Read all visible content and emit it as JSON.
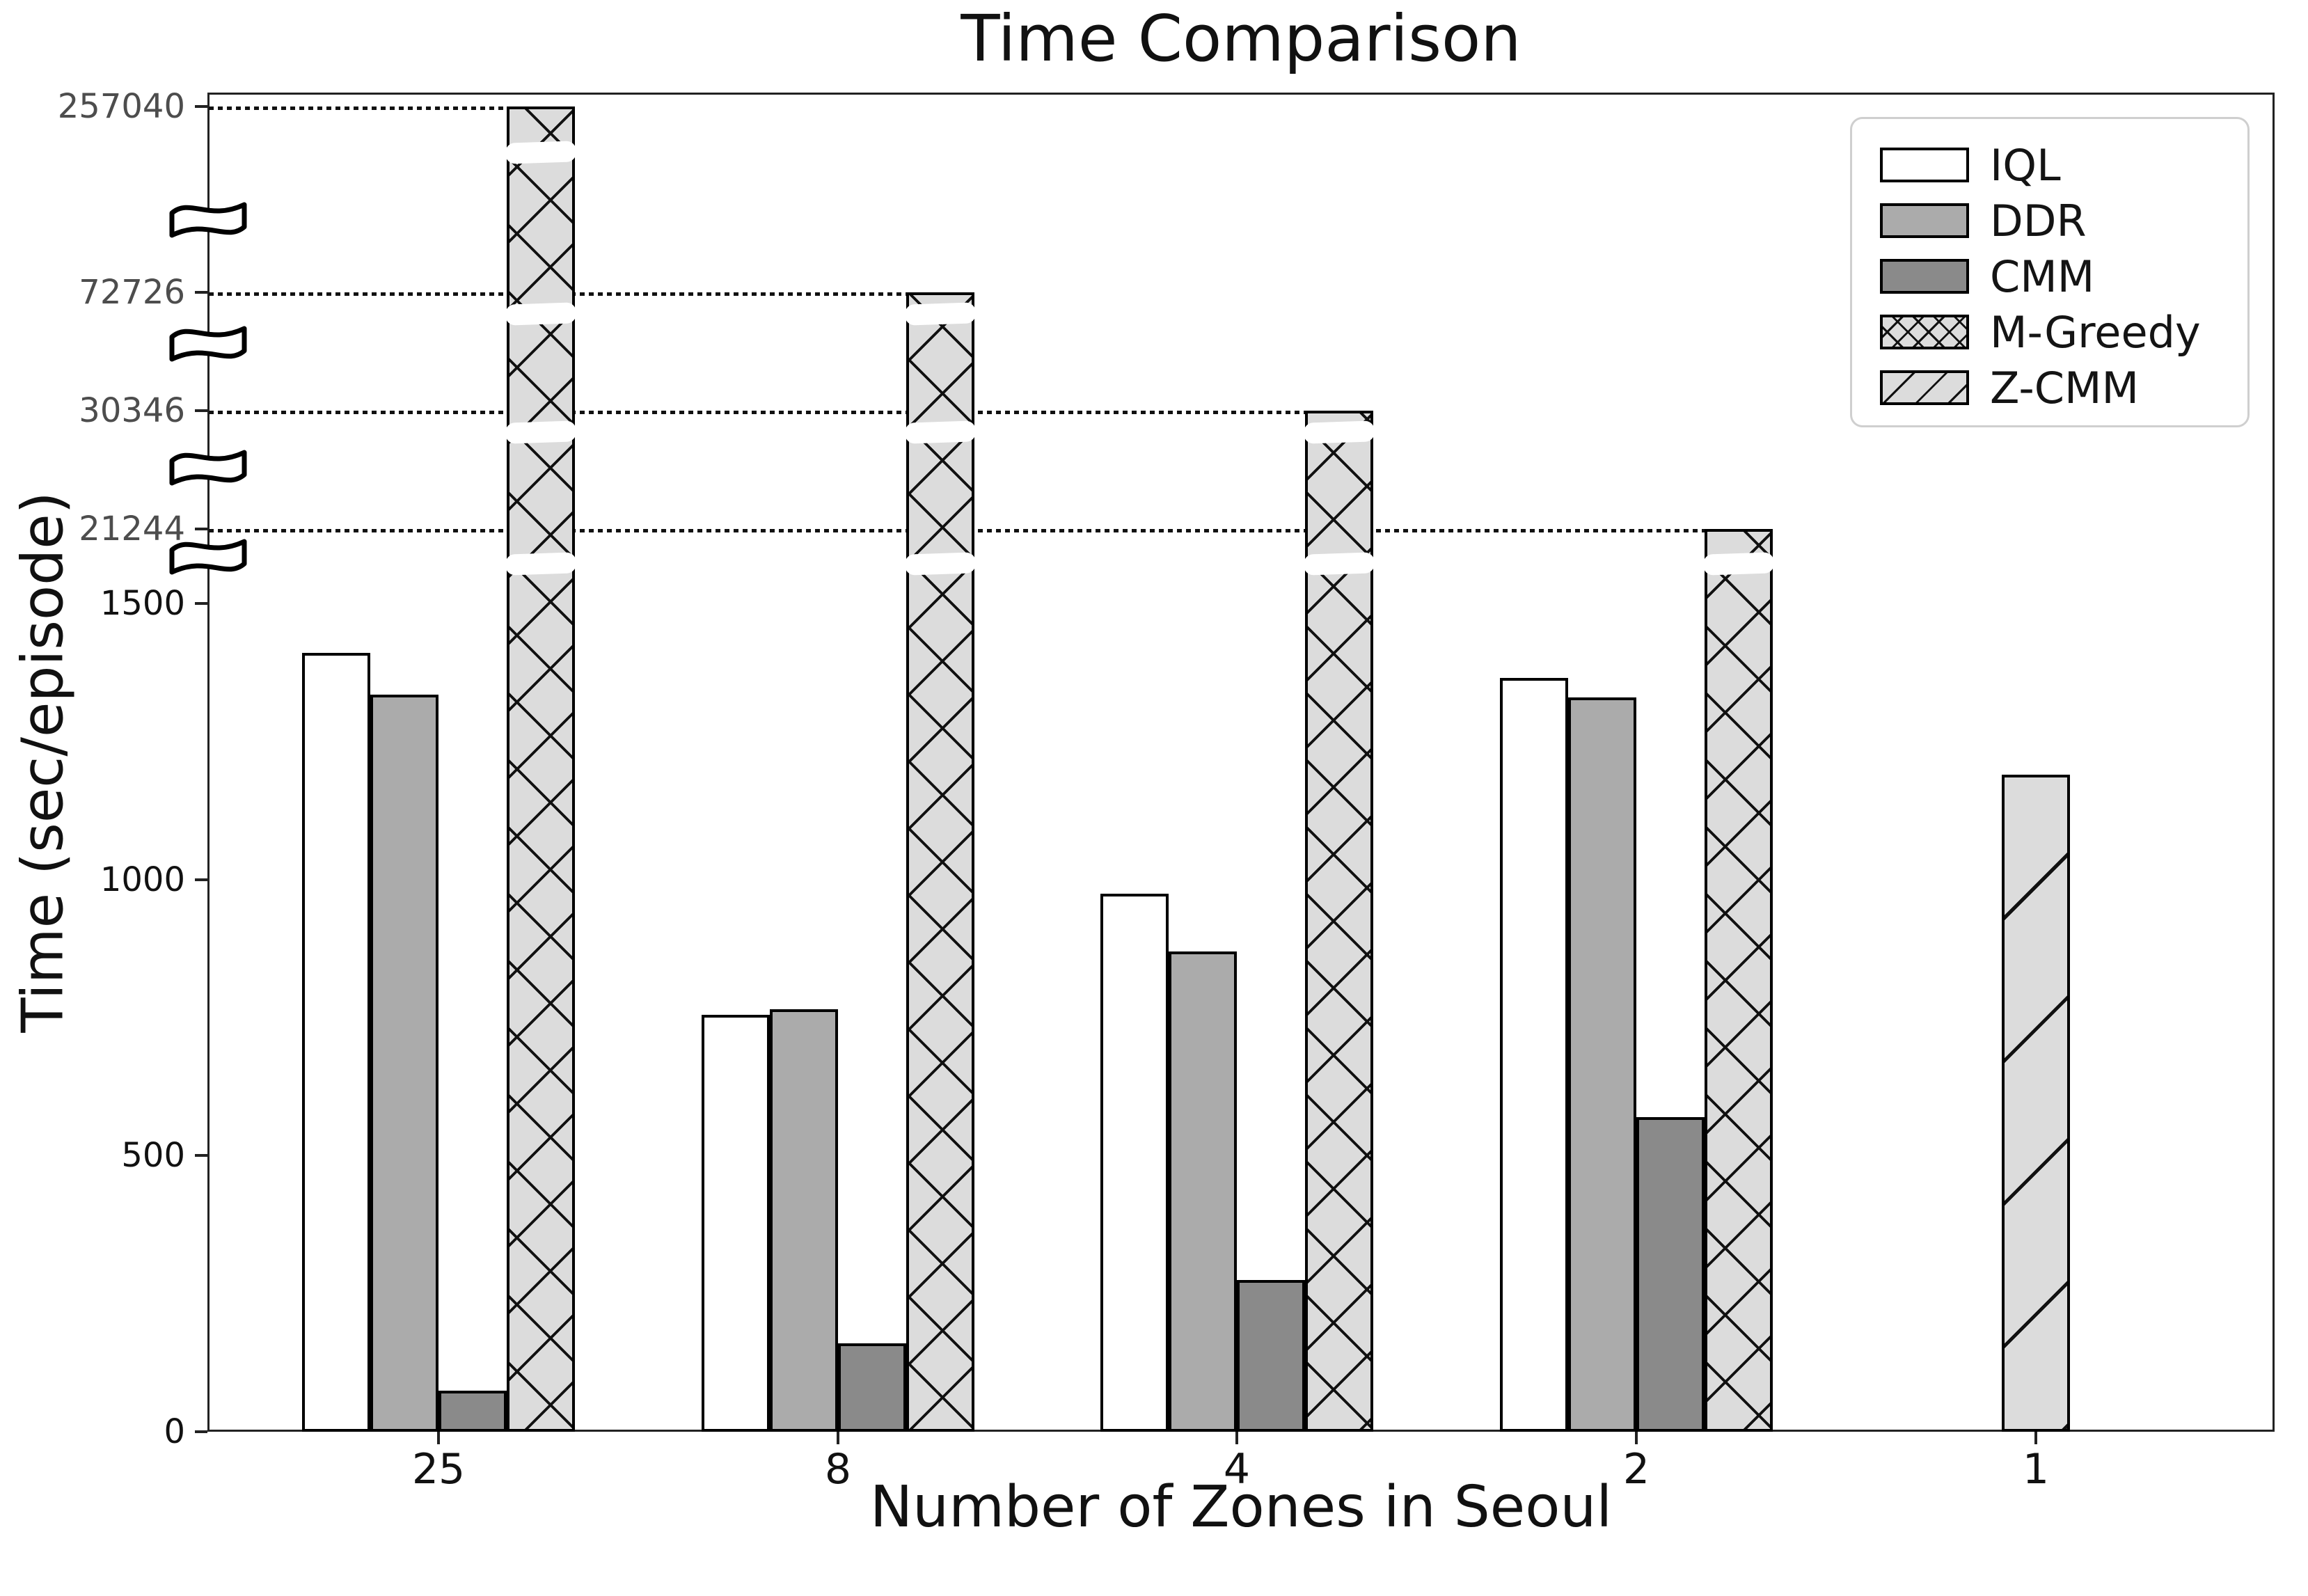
{
  "chart_data": {
    "type": "bar",
    "title": "Time Comparison",
    "xlabel": "Number of Zones in Seoul",
    "ylabel": "Time (sec/episode)",
    "categories": [
      "25",
      "8",
      "4",
      "2",
      "1"
    ],
    "series": [
      {
        "name": "IQL",
        "values": [
          1410,
          755,
          975,
          1365,
          null
        ]
      },
      {
        "name": "DDR",
        "values": [
          1335,
          765,
          870,
          1330,
          null
        ]
      },
      {
        "name": "CMM",
        "values": [
          75,
          160,
          275,
          570,
          null
        ]
      },
      {
        "name": "M-Greedy",
        "values": [
          257040,
          72726,
          30346,
          21244,
          null
        ]
      },
      {
        "name": "Z-CMM",
        "values": [
          null,
          null,
          null,
          null,
          1190
        ]
      }
    ],
    "y_axis": {
      "broken_axis": true,
      "linear_ticks": [
        "0",
        "500",
        "1000",
        "1500"
      ],
      "linear_max": 1500,
      "break_labels_top_to_bottom": [
        "257040",
        "72726",
        "30346",
        "21244"
      ],
      "break_marker_count": 4
    },
    "legend_position": "upper right",
    "grid": false,
    "dotted_guides": "each break label connects by a dotted line to its M-Greedy bar top",
    "hatches": {
      "M-Greedy": "x-crosshatch",
      "Z-CMM": "diagonal"
    },
    "colors": {
      "iql_fill": "#ffffff",
      "ddr_fill": "#ababab",
      "cmm_fill": "#8a8a8a",
      "hatch_fill": "#dcdcdc",
      "bar_edge": "#000000",
      "upper_tick_label": "#4d4d4d",
      "text": "#111111",
      "background": "#ffffff"
    }
  }
}
